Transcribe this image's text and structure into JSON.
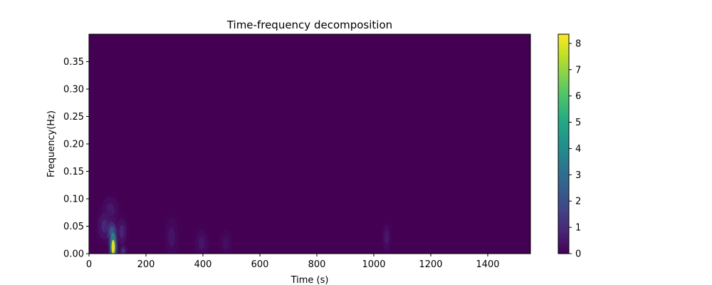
{
  "chart_data": {
    "type": "heatmap",
    "title": "Time-frequency decomposition",
    "xlabel": "Time (s)",
    "ylabel": "Frequency(Hz)",
    "xlim": [
      0,
      1550
    ],
    "ylim": [
      0,
      0.4
    ],
    "xticks": [
      0,
      200,
      400,
      600,
      800,
      1000,
      1200,
      1400
    ],
    "yticks": [
      0.0,
      0.05,
      0.1,
      0.15,
      0.2,
      0.25,
      0.3,
      0.35
    ],
    "xtick_labels": [
      "0",
      "200",
      "400",
      "600",
      "800",
      "1000",
      "1200",
      "1400"
    ],
    "ytick_labels": [
      "0.00",
      "0.05",
      "0.10",
      "0.15",
      "0.20",
      "0.25",
      "0.30",
      "0.35"
    ],
    "colormap": "viridis",
    "colorbar": {
      "vmin": 0,
      "vmax": 8.35,
      "ticks": [
        0,
        1,
        2,
        3,
        4,
        5,
        6,
        7,
        8
      ],
      "tick_labels": [
        "0",
        "1",
        "2",
        "3",
        "4",
        "5",
        "6",
        "7",
        "8"
      ]
    },
    "grid": false,
    "features": [
      {
        "time": 85,
        "freq": 0.012,
        "power": 8.3,
        "time_spread": 10,
        "freq_spread": 0.022
      },
      {
        "time": 80,
        "freq": 0.04,
        "power": 2.5,
        "time_spread": 14,
        "freq_spread": 0.015
      },
      {
        "time": 55,
        "freq": 0.05,
        "power": 1.0,
        "time_spread": 20,
        "freq_spread": 0.02
      },
      {
        "time": 115,
        "freq": 0.04,
        "power": 0.9,
        "time_spread": 15,
        "freq_spread": 0.02
      },
      {
        "time": 75,
        "freq": 0.08,
        "power": 0.6,
        "time_spread": 25,
        "freq_spread": 0.02
      },
      {
        "time": 120,
        "freq": 0.005,
        "power": 1.2,
        "time_spread": 10,
        "freq_spread": 0.008
      },
      {
        "time": 290,
        "freq": 0.03,
        "power": 0.45,
        "time_spread": 20,
        "freq_spread": 0.03
      },
      {
        "time": 395,
        "freq": 0.02,
        "power": 0.5,
        "time_spread": 20,
        "freq_spread": 0.02
      },
      {
        "time": 480,
        "freq": 0.02,
        "power": 0.3,
        "time_spread": 20,
        "freq_spread": 0.02
      },
      {
        "time": 1045,
        "freq": 0.03,
        "power": 0.6,
        "time_spread": 12,
        "freq_spread": 0.02
      }
    ]
  }
}
